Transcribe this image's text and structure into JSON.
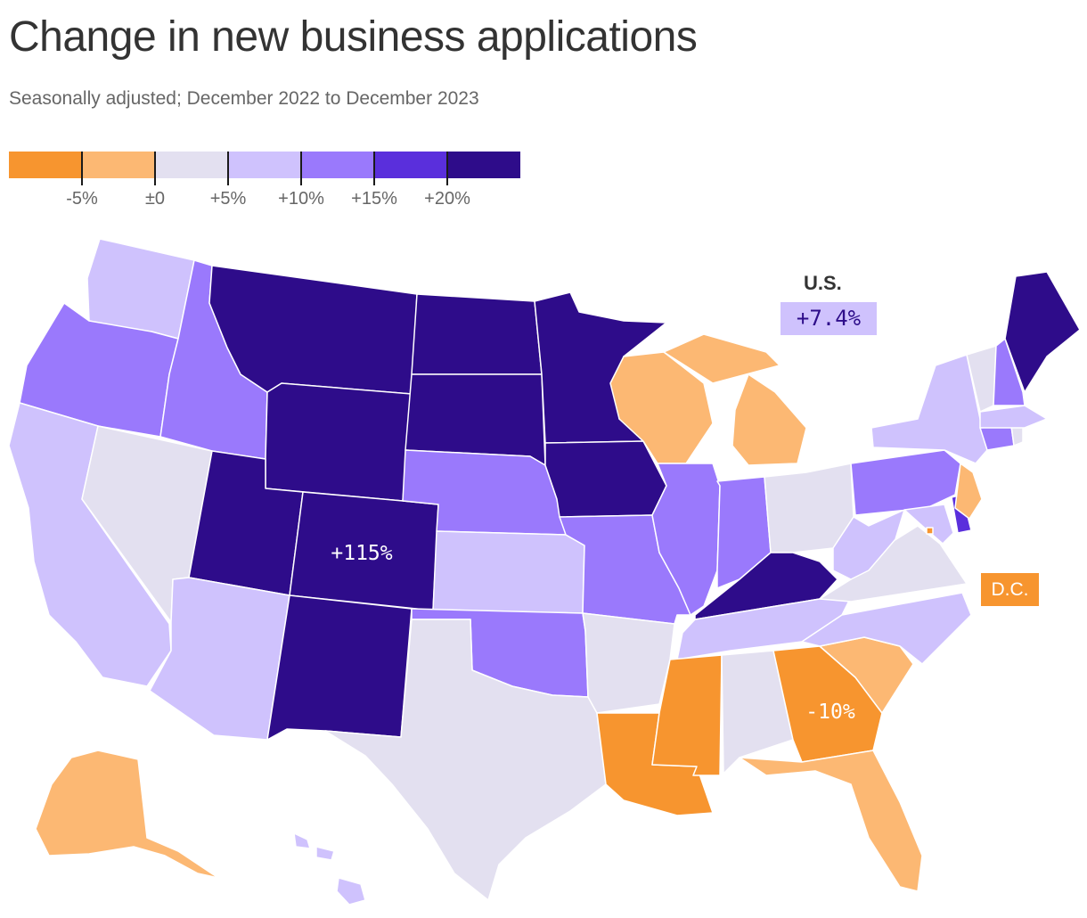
{
  "title": "Change in new business applications",
  "subtitle": "Seasonally adjusted; December 2022 to December 2023",
  "legend": {
    "bins": [
      {
        "color": "#f7952f"
      },
      {
        "color": "#fcb873"
      },
      {
        "color": "#e3e0f0"
      },
      {
        "color": "#cfc2fd"
      },
      {
        "color": "#9a79fc"
      },
      {
        "color": "#5a2fdc"
      },
      {
        "color": "#2e0c8a"
      }
    ],
    "tick_labels": [
      "-5%",
      "±0",
      "+5%",
      "+10%",
      "+15%",
      "+20%"
    ]
  },
  "callouts": {
    "us_label": "U.S.",
    "us_value": "+7.4%",
    "dc_label": "D.C.",
    "colorado_value": "+115%",
    "georgia_value": "-10%"
  },
  "chart_data": {
    "type": "choropleth",
    "title": "Change in new business applications",
    "subtitle": "Seasonally adjusted; December 2022 to December 2023",
    "unit": "percent change",
    "bins": [
      "< -5%",
      "-5% to ±0",
      "±0 to +5%",
      "+5% to +10%",
      "+10% to +15%",
      "+15% to +20%",
      "> +20%"
    ],
    "national": 7.4,
    "labeled_values": {
      "CO": 115,
      "GA": -10
    },
    "states": {
      "WA": "+5% to +10%",
      "OR": "+10% to +15%",
      "CA": "+5% to +10%",
      "NV": "±0 to +5%",
      "ID": "+10% to +15%",
      "MT": "> +20%",
      "WY": "> +20%",
      "UT": "> +20%",
      "CO": "> +20%",
      "AZ": "+5% to +10%",
      "NM": "> +20%",
      "ND": "> +20%",
      "SD": "> +20%",
      "NE": "+10% to +15%",
      "KS": "+5% to +10%",
      "OK": "+10% to +15%",
      "TX": "±0 to +5%",
      "MN": "> +20%",
      "IA": "> +20%",
      "MO": "+10% to +15%",
      "AR": "±0 to +5%",
      "LA": "< -5%",
      "WI": "-5% to ±0",
      "IL": "+10% to +15%",
      "MI": "-5% to ±0",
      "IN": "+10% to +15%",
      "OH": "±0 to +5%",
      "KY": "> +20%",
      "TN": "+5% to +10%",
      "MS": "< -5%",
      "AL": "±0 to +5%",
      "GA": "< -5%",
      "FL": "-5% to ±0",
      "SC": "-5% to ±0",
      "NC": "+5% to +10%",
      "VA": "±0 to +5%",
      "WV": "+5% to +10%",
      "PA": "+10% to +15%",
      "NY": "+5% to +10%",
      "VT": "±0 to +5%",
      "NH": "+10% to +15%",
      "ME": "> +20%",
      "MA": "+5% to +10%",
      "RI": "±0 to +5%",
      "CT": "+10% to +15%",
      "NJ": "-5% to ±0",
      "DE": "+15% to +20%",
      "MD": "+5% to +10%",
      "DC": "< -5%",
      "AK": "-5% to ±0",
      "HI": "+5% to +10%"
    }
  }
}
